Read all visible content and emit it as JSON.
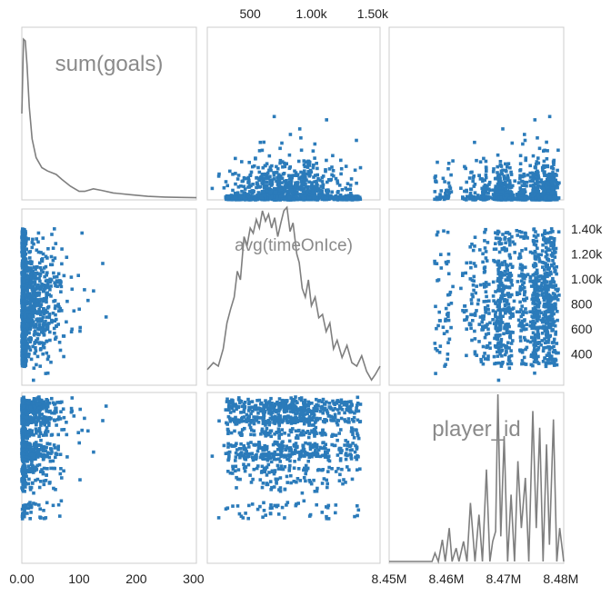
{
  "chart_data": {
    "type": "scatter",
    "variables": [
      {
        "name": "sum(goals)",
        "ticks": [
          {
            "value": 0,
            "label": "0.00"
          },
          {
            "value": 100,
            "label": "100"
          },
          {
            "value": 200,
            "label": "200"
          },
          {
            "value": 300,
            "label": "300"
          }
        ]
      },
      {
        "name": "avg(timeOnIce)",
        "ticks": [
          {
            "value": 500,
            "label": "500"
          },
          {
            "value": 1000,
            "label": "1.00k"
          },
          {
            "value": 1500,
            "label": "1.50k"
          }
        ],
        "right_ticks": [
          {
            "value": 400,
            "label": "400"
          },
          {
            "value": 600,
            "label": "600"
          },
          {
            "value": 800,
            "label": "800"
          },
          {
            "value": 1000,
            "label": "1.00k"
          },
          {
            "value": 1200,
            "label": "1.20k"
          },
          {
            "value": 1400,
            "label": "1.40k"
          }
        ]
      },
      {
        "name": "player_id",
        "ticks": [
          {
            "value": 8450000,
            "label": "8.45M"
          },
          {
            "value": 8460000,
            "label": "8.46M"
          },
          {
            "value": 8470000,
            "label": "8.47M"
          },
          {
            "value": 8480000,
            "label": "8.48M"
          }
        ]
      }
    ],
    "ranges": {
      "sum(goals)": [
        0,
        305
      ],
      "avg(timeOnIce)": [
        150,
        1560
      ],
      "player_id": [
        8450000,
        8480500
      ]
    },
    "diagonal": "density",
    "colors": {
      "points": "#2b7bba",
      "density": "#7f7f7f",
      "frame": "#cccccc",
      "label": "#8a8a8a"
    },
    "density": {
      "sum(goals)": [
        [
          0,
          0.5
        ],
        [
          3,
          0.94
        ],
        [
          6,
          0.93
        ],
        [
          9,
          0.79
        ],
        [
          13,
          0.54
        ],
        [
          18,
          0.35
        ],
        [
          25,
          0.24
        ],
        [
          35,
          0.18
        ],
        [
          45,
          0.16
        ],
        [
          60,
          0.14
        ],
        [
          70,
          0.11
        ],
        [
          85,
          0.07
        ],
        [
          100,
          0.04
        ],
        [
          110,
          0.04
        ],
        [
          125,
          0.055
        ],
        [
          140,
          0.045
        ],
        [
          160,
          0.03
        ],
        [
          190,
          0.02
        ],
        [
          220,
          0.01
        ],
        [
          250,
          0.006
        ],
        [
          280,
          0.004
        ],
        [
          305,
          0.002
        ]
      ],
      "avg(timeOnIce)": [
        [
          150,
          0.08
        ],
        [
          200,
          0.12
        ],
        [
          240,
          0.1
        ],
        [
          280,
          0.2
        ],
        [
          310,
          0.35
        ],
        [
          340,
          0.43
        ],
        [
          370,
          0.5
        ],
        [
          395,
          0.65
        ],
        [
          420,
          0.6
        ],
        [
          450,
          0.85
        ],
        [
          475,
          0.8
        ],
        [
          500,
          0.9
        ],
        [
          525,
          0.87
        ],
        [
          550,
          0.95
        ],
        [
          575,
          0.9
        ],
        [
          600,
          1.0
        ],
        [
          625,
          0.94
        ],
        [
          650,
          0.98
        ],
        [
          675,
          0.9
        ],
        [
          700,
          0.96
        ],
        [
          725,
          0.85
        ],
        [
          750,
          0.93
        ],
        [
          775,
          1.0
        ],
        [
          800,
          1.02
        ],
        [
          825,
          0.88
        ],
        [
          850,
          0.93
        ],
        [
          880,
          0.75
        ],
        [
          900,
          0.7
        ],
        [
          925,
          0.55
        ],
        [
          950,
          0.5
        ],
        [
          975,
          0.6
        ],
        [
          1000,
          0.45
        ],
        [
          1030,
          0.5
        ],
        [
          1060,
          0.38
        ],
        [
          1090,
          0.4
        ],
        [
          1120,
          0.3
        ],
        [
          1150,
          0.35
        ],
        [
          1180,
          0.2
        ],
        [
          1210,
          0.25
        ],
        [
          1250,
          0.15
        ],
        [
          1290,
          0.22
        ],
        [
          1330,
          0.12
        ],
        [
          1370,
          0.1
        ],
        [
          1410,
          0.16
        ],
        [
          1450,
          0.07
        ],
        [
          1490,
          0.02
        ],
        [
          1520,
          0.05
        ],
        [
          1560,
          0.1
        ]
      ],
      "player_id": [
        [
          8450000,
          0
        ],
        [
          8457500,
          0
        ],
        [
          8458000,
          0.05
        ],
        [
          8458600,
          0
        ],
        [
          8459300,
          0.13
        ],
        [
          8459800,
          0
        ],
        [
          8460500,
          0.2
        ],
        [
          8461000,
          0
        ],
        [
          8461700,
          0.08
        ],
        [
          8462200,
          0
        ],
        [
          8463000,
          0.12
        ],
        [
          8463600,
          0
        ],
        [
          8464200,
          0.35
        ],
        [
          8465000,
          0
        ],
        [
          8465700,
          0.28
        ],
        [
          8466300,
          0
        ],
        [
          8467000,
          0.55
        ],
        [
          8467600,
          0
        ],
        [
          8468100,
          0.12
        ],
        [
          8468600,
          0.18
        ],
        [
          8469000,
          1.0
        ],
        [
          8469500,
          0.15
        ],
        [
          8470100,
          0.75
        ],
        [
          8470700,
          0
        ],
        [
          8471300,
          0.4
        ],
        [
          8471900,
          0
        ],
        [
          8472500,
          0.6
        ],
        [
          8473100,
          0.2
        ],
        [
          8473800,
          0.5
        ],
        [
          8474400,
          0
        ],
        [
          8475100,
          0.9
        ],
        [
          8475700,
          0.2
        ],
        [
          8476300,
          0.8
        ],
        [
          8476900,
          0
        ],
        [
          8477500,
          0.7
        ],
        [
          8478000,
          0.1
        ],
        [
          8478700,
          0.85
        ],
        [
          8479300,
          0
        ],
        [
          8479800,
          0.2
        ],
        [
          8480500,
          0
        ]
      ]
    },
    "seed": 7
  }
}
